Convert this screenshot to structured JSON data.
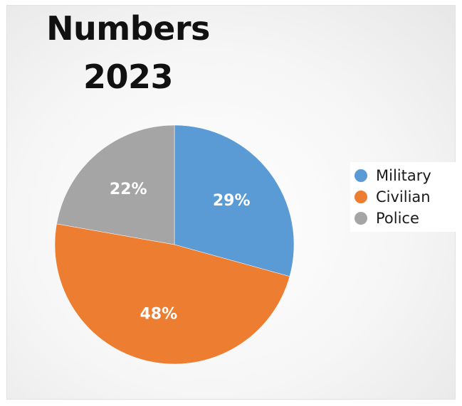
{
  "chart_data": {
    "type": "pie",
    "title_lines": [
      "Numbers",
      "2023"
    ],
    "slices": [
      {
        "label": "Military",
        "value": 29,
        "value_label": "29%",
        "color": "#5b9bd5"
      },
      {
        "label": "Civilian",
        "value": 48,
        "value_label": "48%",
        "color": "#ed7d31"
      },
      {
        "label": "Police",
        "value": 22,
        "value_label": "22%",
        "color": "#a5a5a5"
      }
    ],
    "legend_position": "right",
    "start_angle_deg": 0,
    "direction": "clockwise"
  }
}
